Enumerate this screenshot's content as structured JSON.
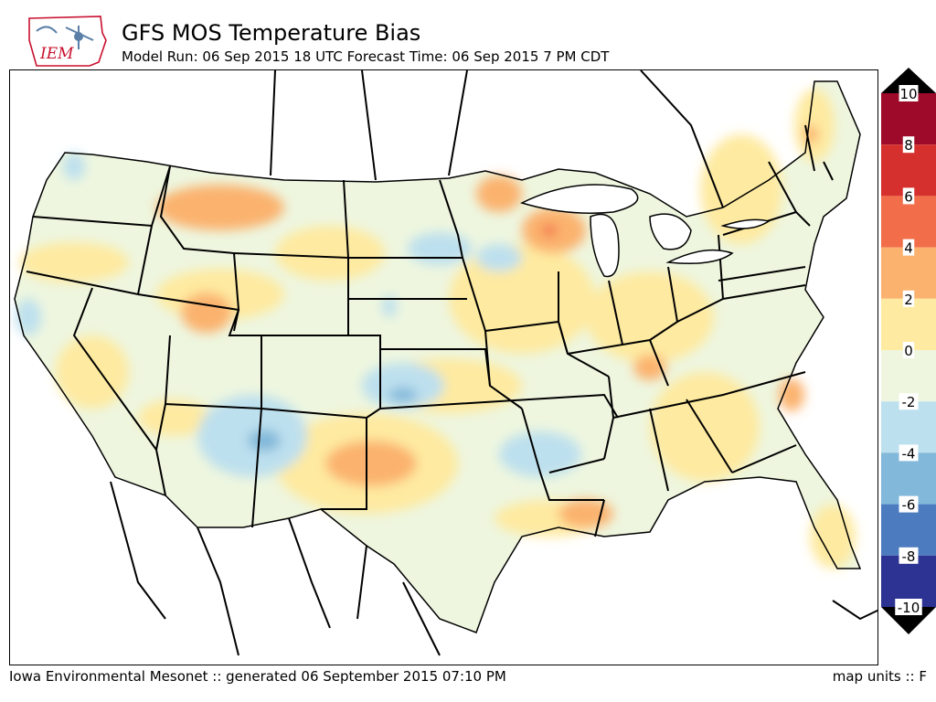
{
  "header": {
    "title": "GFS MOS Temperature Bias",
    "subtitle": "Model Run: 06 Sep 2015 18 UTC Forecast Time: 06 Sep 2015 7 PM CDT",
    "logo_text": "IEM"
  },
  "footer": {
    "credit": "Iowa Environmental Mesonet :: generated 06 September 2015 07:10 PM",
    "units": "map units :: F"
  },
  "legend": {
    "bins": [
      {
        "label": "10",
        "color": "#67001f"
      },
      {
        "label": "8",
        "color": "#b2182b"
      },
      {
        "label": "6",
        "color": "#d6604d"
      },
      {
        "label": "4",
        "color": "#f4a582"
      },
      {
        "label": "2",
        "color": "#fdd49e"
      },
      {
        "label": "0",
        "color": "#ffeea8"
      },
      {
        "label": "-2",
        "color": "#f0f7df"
      },
      {
        "label": "-4",
        "color": "#c3e3ef"
      },
      {
        "label": "-6",
        "color": "#8cbfdb"
      },
      {
        "label": "-8",
        "color": "#4575b4"
      },
      {
        "label": "-10",
        "color": "#313695"
      }
    ],
    "swatch_colors": [
      "#9e0a2a",
      "#d6302e",
      "#f26d4a",
      "#fbb26e",
      "#feeaa0",
      "#eef6df",
      "#bde0ee",
      "#82b8da",
      "#4c7cbf",
      "#2c3392"
    ],
    "arrow_color": "#000000"
  }
}
